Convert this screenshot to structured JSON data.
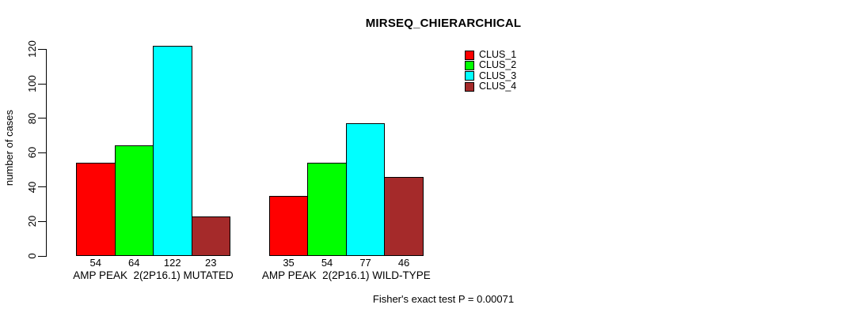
{
  "title": "MIRSEQ_CHIERARCHICAL",
  "y_axis": {
    "label": "number of cases",
    "ticks": [
      0,
      20,
      40,
      60,
      80,
      100,
      120
    ]
  },
  "legend": {
    "items": [
      {
        "label": "CLUS_1",
        "color": "#FF0000"
      },
      {
        "label": "CLUS_2",
        "color": "#00FF00"
      },
      {
        "label": "CLUS_3",
        "color": "#00FFFF"
      },
      {
        "label": "CLUS_4",
        "color": "#A52A2A"
      }
    ]
  },
  "footer": "Fisher's exact test P = 0.00071",
  "chart_data": {
    "type": "bar",
    "title": "MIRSEQ_CHIERARCHICAL",
    "xlabel": "",
    "ylabel": "number of cases",
    "ylim": [
      0,
      122
    ],
    "grid": false,
    "legend_position": "top-right",
    "bar_value_labels_shown": true,
    "categories": [
      "AMP PEAK  2(2P16.1) MUTATED",
      "AMP PEAK  2(2P16.1) WILD-TYPE"
    ],
    "series": [
      {
        "name": "CLUS_1",
        "color": "#FF0000",
        "values": [
          54,
          35
        ]
      },
      {
        "name": "CLUS_2",
        "color": "#00FF00",
        "values": [
          64,
          54
        ]
      },
      {
        "name": "CLUS_3",
        "color": "#00FFFF",
        "values": [
          122,
          77
        ]
      },
      {
        "name": "CLUS_4",
        "color": "#A52A2A",
        "values": [
          23,
          46
        ]
      }
    ],
    "annotation": "Fisher's exact test P = 0.00071"
  }
}
